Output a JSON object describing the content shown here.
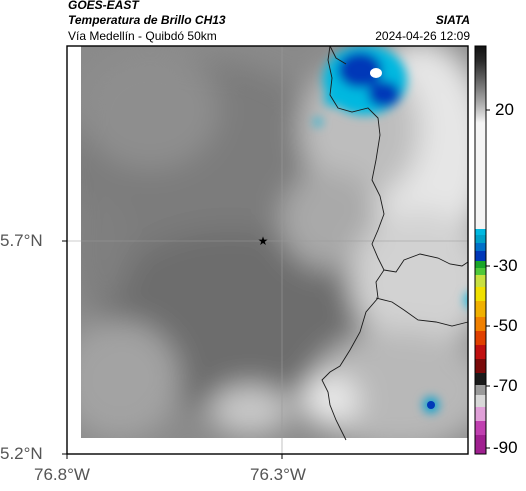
{
  "header": {
    "satellite": "GOES-EAST",
    "product": "Temperatura de Brillo CH13",
    "region": "Vía Medellín - Quibdó 50km",
    "agency": "SIATA",
    "datetime": "2024-04-26 12:09"
  },
  "map": {
    "lat_ticks": [
      "5.7°N",
      "5.2°N"
    ],
    "lon_ticks": [
      "76.8°W",
      "76.3°W"
    ],
    "marker": "star-marker"
  },
  "colorbar": {
    "ticks": [
      "20",
      "-30",
      "-50",
      "-70",
      "-90"
    ],
    "colors": {
      "warm_dark": "#111111",
      "cold_cyan": "#00b8e0",
      "cold_blue": "#0038b8",
      "green": "#1aa52a",
      "yellow": "#f0e000",
      "orange": "#f08000",
      "red": "#c01010",
      "magenta": "#c040b0"
    }
  }
}
